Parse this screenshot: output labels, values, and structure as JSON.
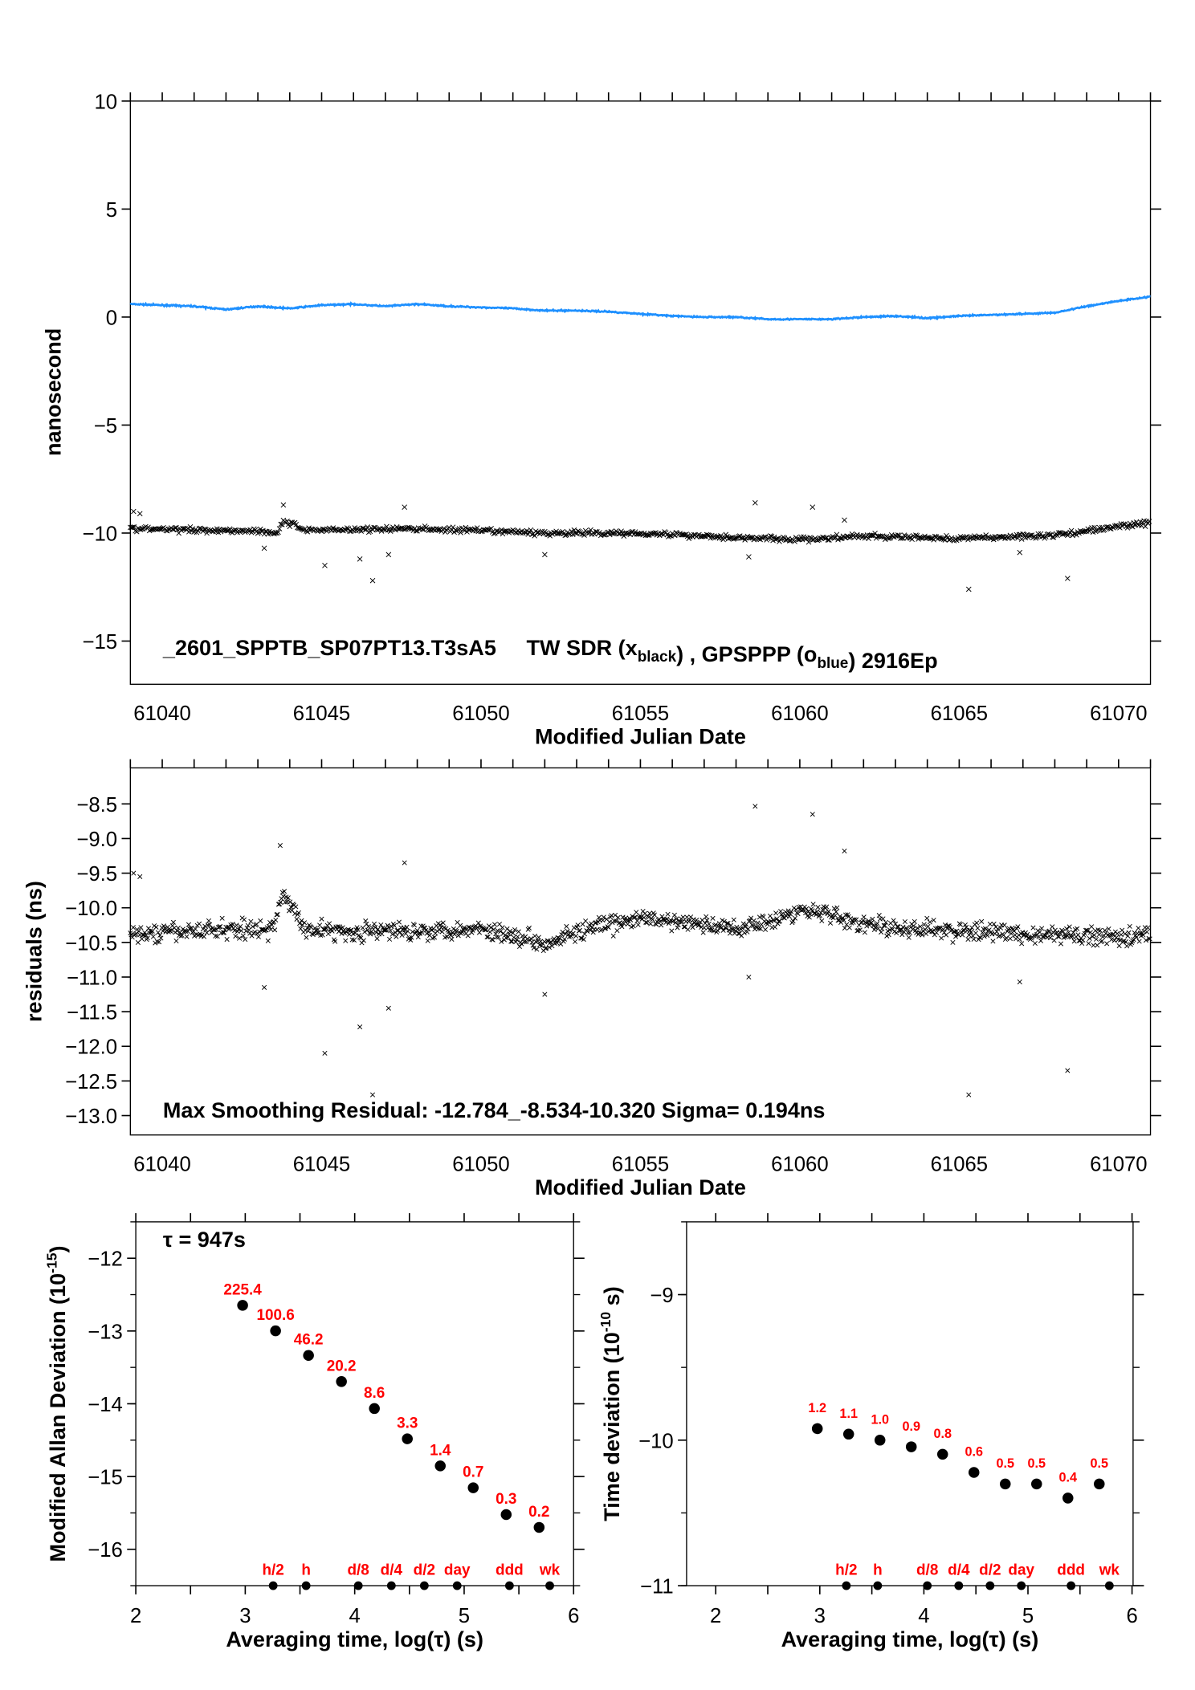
{
  "chart_data": [
    {
      "type": "scatter",
      "panel": "time-series",
      "title": "_2601_SPPTB_SP07PT13.T3sA5",
      "legend_text": {
        "prefix": "TW SDR (x",
        "black_sub": "black",
        "mid": ") ,  GPSPPP (o",
        "blue_sub": "blue",
        "suffix": ")  2916Ep"
      },
      "xlabel": "Modified Julian Date",
      "ylabel": "nanosecond",
      "xlim": [
        61039,
        61071
      ],
      "ylim": [
        -17,
        10
      ],
      "xticks": [
        61040,
        61045,
        61050,
        61055,
        61060,
        61065,
        61070
      ],
      "yticks": [
        10,
        5,
        0,
        -5,
        -10,
        -15
      ],
      "ytick_labels": [
        "10",
        "5",
        "0",
        "−5",
        "−10",
        "−15"
      ],
      "series": [
        {
          "marker": "line",
          "color": "#1e90ff",
          "x": [
            61039,
            61040,
            61041,
            61042,
            61043,
            61044,
            61045,
            61046,
            61047,
            61048,
            61049,
            61050,
            61051,
            61052,
            61053,
            61054,
            61055,
            61056,
            61057,
            61058,
            61059,
            61060,
            61061,
            61062,
            61063,
            61064,
            61065,
            61066,
            61067,
            61068,
            61069,
            61070,
            61071
          ],
          "y": [
            0.6,
            0.55,
            0.5,
            0.35,
            0.5,
            0.4,
            0.55,
            0.6,
            0.5,
            0.6,
            0.5,
            0.45,
            0.4,
            0.3,
            0.3,
            0.25,
            0.15,
            0.05,
            0.0,
            0.0,
            -0.1,
            -0.1,
            -0.1,
            0.0,
            0.05,
            -0.05,
            0.05,
            0.1,
            0.15,
            0.2,
            0.5,
            0.75,
            0.95
          ]
        },
        {
          "marker": "x",
          "color": "#000000",
          "trend_x": [
            61039,
            61043,
            61043.6,
            61043.8,
            61044.5,
            61045,
            61048,
            61050,
            61052,
            61055,
            61058,
            61060,
            61062,
            61065,
            61068,
            61071
          ],
          "trend_y": [
            -9.8,
            -9.9,
            -10.0,
            -9.45,
            -9.85,
            -9.85,
            -9.8,
            -9.9,
            -10.0,
            -10.0,
            -10.2,
            -10.3,
            -10.15,
            -10.25,
            -10.1,
            -9.5
          ],
          "outliers_x": [
            61039.1,
            61039.3,
            61043.2,
            61043.8,
            61045.1,
            61046.2,
            61046.6,
            61047.1,
            61047.6,
            61052,
            61058.4,
            61058.6,
            61060.4,
            61061.4,
            61065.3,
            61066.9,
            61068.4
          ],
          "outliers_y": [
            -9.0,
            -9.1,
            -10.7,
            -8.7,
            -11.5,
            -11.2,
            -12.2,
            -11.0,
            -8.8,
            -11.0,
            -11.1,
            -8.6,
            -8.8,
            -9.4,
            -12.6,
            -10.9,
            -12.1
          ]
        }
      ]
    },
    {
      "type": "scatter",
      "panel": "residuals",
      "annotation": "Max Smoothing Residual: -12.784_-8.534-10.320  Sigma= 0.194ns",
      "xlabel": "Modified Julian Date",
      "ylabel": "residuals (ns)",
      "xlim": [
        61039,
        61071
      ],
      "ylim": [
        -13.28,
        -7.98
      ],
      "xticks": [
        61040,
        61045,
        61050,
        61055,
        61060,
        61065,
        61070
      ],
      "yticks": [
        -8.5,
        -9.0,
        -9.5,
        -10.0,
        -10.5,
        -11.0,
        -11.5,
        -12.0,
        -12.5,
        -13.0
      ],
      "ytick_labels": [
        "−8.5",
        "−9.0",
        "−9.5",
        "−10.0",
        "−10.5",
        "−11.0",
        "−11.5",
        "−12.0",
        "−12.5",
        "−13.0"
      ],
      "series": [
        {
          "marker": "x",
          "color": "#000000",
          "trend_x": [
            61039,
            61042,
            61043.5,
            61043.8,
            61044.5,
            61046,
            61050,
            61052,
            61053,
            61055,
            61058,
            61060.5,
            61061.5,
            61063,
            61066,
            61068,
            61071
          ],
          "trend_y": [
            -10.4,
            -10.3,
            -10.3,
            -9.8,
            -10.3,
            -10.35,
            -10.3,
            -10.5,
            -10.35,
            -10.15,
            -10.3,
            -10.0,
            -10.2,
            -10.3,
            -10.35,
            -10.4,
            -10.4
          ],
          "outliers_x": [
            61039.1,
            61039.3,
            61043.2,
            61043.7,
            61045.1,
            61046.2,
            61046.6,
            61047.1,
            61047.6,
            61052,
            61058.4,
            61058.6,
            61060.4,
            61061.4,
            61065.3,
            61066.9,
            61068.4
          ],
          "outliers_y": [
            -9.5,
            -9.55,
            -11.15,
            -9.1,
            -12.1,
            -11.72,
            -12.7,
            -11.45,
            -9.35,
            -11.25,
            -11.0,
            -8.534,
            -8.65,
            -9.18,
            -12.7,
            -11.07,
            -12.35
          ]
        }
      ]
    },
    {
      "type": "scatter",
      "panel": "mdev",
      "annotation": "τ = 947s",
      "xlabel": "Averaging time, log(τ) (s)",
      "ylabel": "Modified Allan Deviation (10",
      "ylabel_sup": "-15",
      "ylabel_end": ")",
      "xlim": [
        2,
        6
      ],
      "ylim": [
        -16.5,
        -11.5
      ],
      "xticks": [
        2,
        3,
        4,
        5,
        6
      ],
      "yticks": [
        -12,
        -13,
        -14,
        -15,
        -16
      ],
      "ytick_labels": [
        "−12",
        "−13",
        "−14",
        "−15",
        "−16"
      ],
      "x": [
        2.976,
        3.277,
        3.578,
        3.879,
        4.18,
        4.481,
        4.782,
        5.083,
        5.384,
        5.685
      ],
      "labels": [
        "225.4",
        "100.6",
        "46.2",
        "20.2",
        "8.6",
        "3.3",
        "1.4",
        "0.7",
        "0.3",
        "0.2"
      ],
      "values_e15": [
        225.4,
        100.6,
        46.2,
        20.2,
        8.6,
        3.3,
        1.4,
        0.7,
        0.3,
        0.2
      ],
      "markers": {
        "labels": [
          "h/2",
          "h",
          "d/8",
          "d/4",
          "d/2",
          "day",
          "ddd",
          "wk"
        ],
        "x": [
          3.255,
          3.556,
          4.033,
          4.335,
          4.636,
          4.936,
          5.414,
          5.782
        ]
      },
      "label_color": "#ff0000"
    },
    {
      "type": "scatter",
      "panel": "tdev",
      "xlabel": "Averaging time, log(τ) (s)",
      "ylabel": "Time deviation (10",
      "ylabel_sup": "-10",
      "ylabel_end": " s)",
      "xlim": [
        1.72,
        6.01
      ],
      "ylim": [
        -11,
        -8.5
      ],
      "xticks": [
        2,
        3,
        4,
        5,
        6
      ],
      "yticks": [
        -9,
        -10,
        -11
      ],
      "ytick_labels": [
        "−9",
        "−10",
        "−11"
      ],
      "x": [
        2.976,
        3.277,
        3.578,
        3.879,
        4.18,
        4.481,
        4.782,
        5.083,
        5.384,
        5.685
      ],
      "labels": [
        "1.2",
        "1.1",
        "1.0",
        "0.9",
        "0.8",
        "0.6",
        "0.5",
        "0.5",
        "0.4",
        "0.5"
      ],
      "values_e10": [
        1.2,
        1.1,
        1.0,
        0.9,
        0.8,
        0.6,
        0.5,
        0.5,
        0.4,
        0.5
      ],
      "markers": {
        "labels": [
          "h/2",
          "h",
          "d/8",
          "d/4",
          "d/2",
          "day",
          "ddd",
          "wk"
        ],
        "x": [
          3.255,
          3.556,
          4.033,
          4.335,
          4.636,
          4.936,
          5.414,
          5.782
        ]
      },
      "label_color": "#ff0000"
    }
  ]
}
